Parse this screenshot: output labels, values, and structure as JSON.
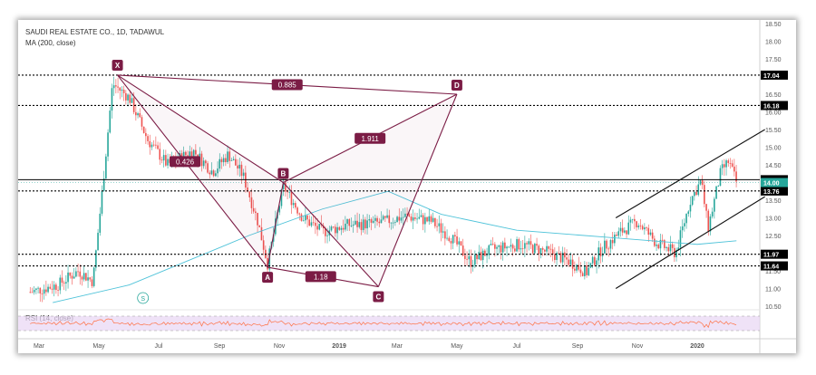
{
  "header": {
    "symbol_line": "SAUDI REAL ESTATE CO., 1D, TADAWUL",
    "ma_line": "MA (200, close)"
  },
  "rsi_label": "RSI (14, close)",
  "watermark_icon": "tradingview-s-icon",
  "colors": {
    "up": "#26a69a",
    "down": "#ef5350",
    "ma": "#4fc3d9",
    "pattern": "#7b1c45",
    "rsi_line": "#ff7043",
    "rsi_band": "#e8d5f3",
    "level_line": "#000000"
  },
  "chart_data": {
    "type": "candlestick",
    "y_ticks": [
      "18.50",
      "18.00",
      "17.50",
      "17.00",
      "16.50",
      "16.00",
      "15.50",
      "15.00",
      "14.50",
      "14.00",
      "13.50",
      "13.00",
      "12.50",
      "12.00",
      "11.50",
      "11.00",
      "10.50"
    ],
    "ylim": [
      10.5,
      18.5
    ],
    "x_ticks": [
      "Mar",
      "May",
      "Jul",
      "Sep",
      "Nov",
      "2019",
      "Mar",
      "May",
      "Jul",
      "Sep",
      "Nov",
      "2020",
      "Mar"
    ],
    "horizontal_levels": [
      {
        "value": 17.04,
        "label": "17.04",
        "style": "dotted"
      },
      {
        "value": 16.18,
        "label": "16.18",
        "style": "dotted"
      },
      {
        "value": 14.08,
        "label": "14.08",
        "style": "solid"
      },
      {
        "value": 13.76,
        "label": "13.76",
        "style": "dotted"
      },
      {
        "value": 11.97,
        "label": "11.97",
        "style": "dotted"
      },
      {
        "value": 11.64,
        "label": "11.64",
        "style": "dotted"
      }
    ],
    "current_price": {
      "value": 14.0,
      "label": "14.00"
    },
    "harmonic_pattern": {
      "points": [
        {
          "name": "X",
          "x": "2018-05-20",
          "y": 17.04
        },
        {
          "name": "A",
          "x": "2018-10-20",
          "y": 11.6
        },
        {
          "name": "B",
          "x": "2018-11-05",
          "y": 14.0
        },
        {
          "name": "C",
          "x": "2019-02-10",
          "y": 11.05
        },
        {
          "name": "D",
          "x": "2019-05-01",
          "y": 16.5
        }
      ],
      "ratios": [
        "0.885",
        "0.426",
        "1.911",
        "1.18"
      ]
    },
    "ma_200": [
      {
        "x": "2018-03-15",
        "y": 10.6
      },
      {
        "x": "2018-06-01",
        "y": 11.1
      },
      {
        "x": "2018-08-01",
        "y": 11.8
      },
      {
        "x": "2018-10-01",
        "y": 12.5
      },
      {
        "x": "2018-12-15",
        "y": 13.25
      },
      {
        "x": "2019-02-20",
        "y": 13.75
      },
      {
        "x": "2019-04-15",
        "y": 13.1
      },
      {
        "x": "2019-07-01",
        "y": 12.65
      },
      {
        "x": "2019-10-01",
        "y": 12.45
      },
      {
        "x": "2020-01-01",
        "y": 12.25
      },
      {
        "x": "2020-02-10",
        "y": 12.35
      }
    ],
    "price_path": [
      {
        "x": "2018-02-20",
        "y": 10.9
      },
      {
        "x": "2018-03-20",
        "y": 11.1
      },
      {
        "x": "2018-04-10",
        "y": 11.5
      },
      {
        "x": "2018-04-25",
        "y": 11.2
      },
      {
        "x": "2018-05-05",
        "y": 13.9
      },
      {
        "x": "2018-05-15",
        "y": 16.8
      },
      {
        "x": "2018-06-01",
        "y": 16.4
      },
      {
        "x": "2018-06-20",
        "y": 15.2
      },
      {
        "x": "2018-07-10",
        "y": 14.5
      },
      {
        "x": "2018-08-05",
        "y": 14.9
      },
      {
        "x": "2018-08-25",
        "y": 14.3
      },
      {
        "x": "2018-09-10",
        "y": 14.8
      },
      {
        "x": "2018-09-25",
        "y": 14.2
      },
      {
        "x": "2018-10-10",
        "y": 12.9
      },
      {
        "x": "2018-10-20",
        "y": 11.7
      },
      {
        "x": "2018-11-05",
        "y": 13.9
      },
      {
        "x": "2018-11-25",
        "y": 13.0
      },
      {
        "x": "2018-12-15",
        "y": 12.6
      },
      {
        "x": "2019-01-10",
        "y": 12.8
      },
      {
        "x": "2019-02-10",
        "y": 12.85
      },
      {
        "x": "2019-03-10",
        "y": 13.05
      },
      {
        "x": "2019-04-05",
        "y": 12.9
      },
      {
        "x": "2019-04-25",
        "y": 12.45
      },
      {
        "x": "2019-05-15",
        "y": 11.75
      },
      {
        "x": "2019-06-05",
        "y": 12.1
      },
      {
        "x": "2019-07-05",
        "y": 12.25
      },
      {
        "x": "2019-08-05",
        "y": 12.0
      },
      {
        "x": "2019-08-25",
        "y": 11.75
      },
      {
        "x": "2019-09-10",
        "y": 11.45
      },
      {
        "x": "2019-09-25",
        "y": 12.1
      },
      {
        "x": "2019-10-15",
        "y": 12.6
      },
      {
        "x": "2019-11-01",
        "y": 12.9
      },
      {
        "x": "2019-11-20",
        "y": 12.3
      },
      {
        "x": "2019-12-10",
        "y": 12.0
      },
      {
        "x": "2019-12-25",
        "y": 13.5
      },
      {
        "x": "2020-01-05",
        "y": 14.05
      },
      {
        "x": "2020-01-12",
        "y": 12.7
      },
      {
        "x": "2020-01-25",
        "y": 14.3
      },
      {
        "x": "2020-02-02",
        "y": 14.6
      },
      {
        "x": "2020-02-10",
        "y": 14.0
      }
    ]
  }
}
